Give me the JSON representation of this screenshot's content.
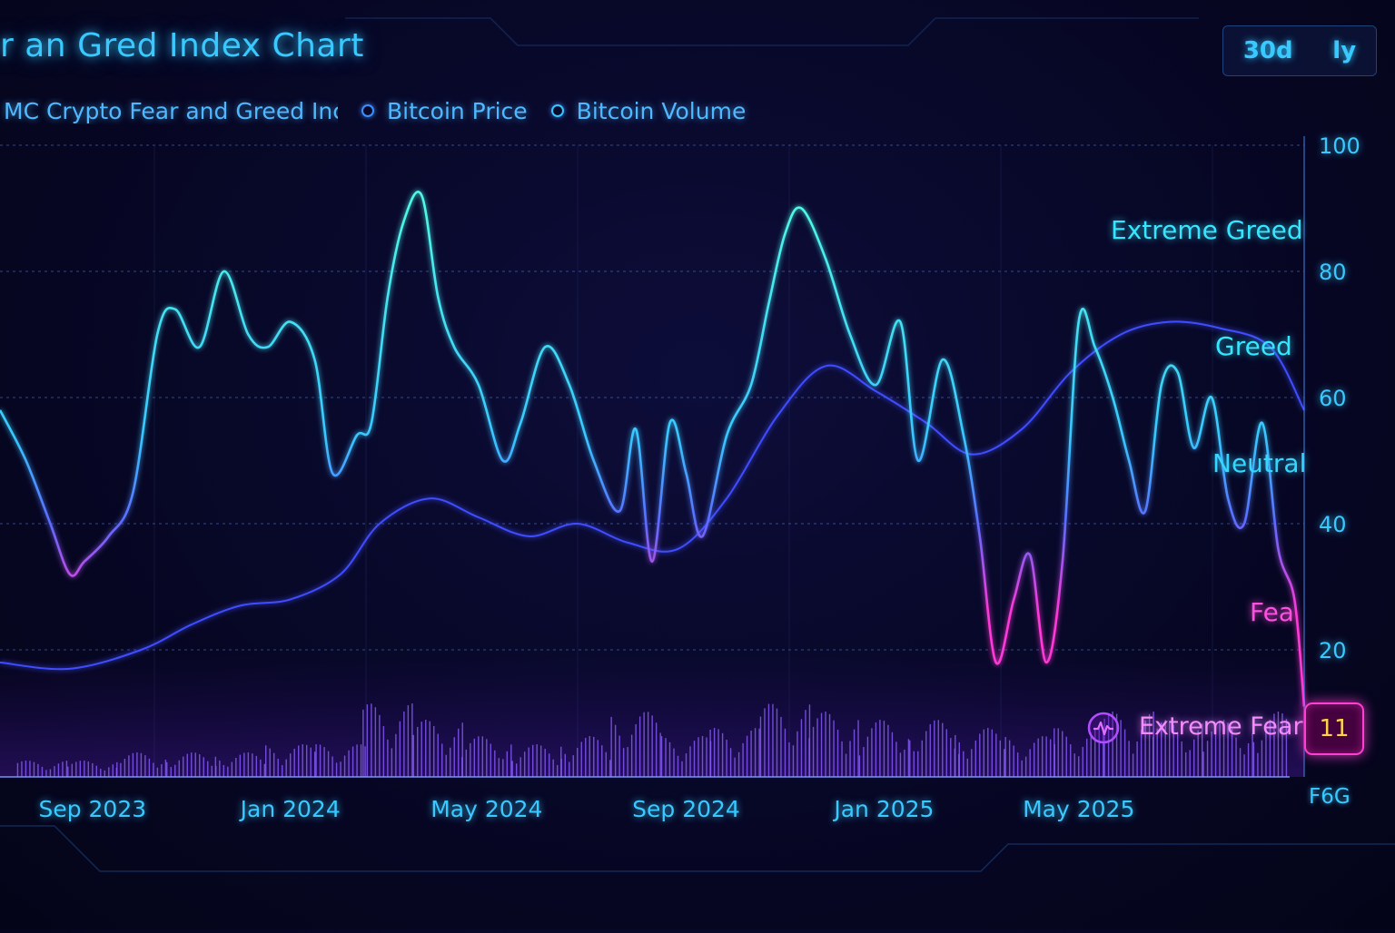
{
  "title": "r an Gred Index Chart",
  "range_buttons": [
    "30d",
    "ly"
  ],
  "legend": [
    {
      "label": "MC Crypto Fear and Greed Inc",
      "color": "#3fa8ff"
    },
    {
      "label": "Bitcoin Price",
      "color": "#3f7bff"
    },
    {
      "label": "Bitcoin Volume",
      "color": "#35c8ff"
    }
  ],
  "sentiment_labels": {
    "extreme_greed": "Extreme Greed",
    "greed": "Greed",
    "neutral": "Neutral",
    "fear": "Fea",
    "extreme_fear": "Extreme Fear"
  },
  "current_value": "11",
  "corner_label": "F6G",
  "colors": {
    "index_high": "#35f0e0",
    "index_low": "#ff38d8",
    "price": "#3f4dff",
    "volume": "#8a5cff",
    "accent": "#39c9ff"
  },
  "chart_data": {
    "type": "line",
    "title": "r an Gred Index Chart",
    "x_ticks": [
      "Sep 2023",
      "Jan 2024",
      "May 2024",
      "Sep 2024",
      "Jan 2025",
      "May 2025"
    ],
    "x_tick_dates": [
      "2023-09-15",
      "2024-01-15",
      "2024-05-15",
      "2024-09-15",
      "2025-01-15",
      "2025-05-15"
    ],
    "x_range": [
      "2023-07-20",
      "2025-10-01"
    ],
    "y_ticks": [
      20,
      40,
      60,
      80,
      100
    ],
    "ylim": [
      0,
      100
    ],
    "grid": true,
    "legend_position": "top-left",
    "series": [
      {
        "name": "MC Crypto Fear and Greed Inc",
        "x": [
          "2023-07-20",
          "2023-08-05",
          "2023-08-20",
          "2023-09-01",
          "2023-09-10",
          "2023-09-25",
          "2023-10-10",
          "2023-10-25",
          "2023-11-05",
          "2023-11-20",
          "2023-12-05",
          "2023-12-20",
          "2024-01-01",
          "2024-01-15",
          "2024-01-30",
          "2024-02-10",
          "2024-02-25",
          "2024-03-05",
          "2024-03-15",
          "2024-03-25",
          "2024-04-05",
          "2024-04-15",
          "2024-04-25",
          "2024-05-10",
          "2024-05-25",
          "2024-06-05",
          "2024-06-20",
          "2024-07-05",
          "2024-07-20",
          "2024-08-05",
          "2024-08-15",
          "2024-08-25",
          "2024-09-05",
          "2024-09-15",
          "2024-09-25",
          "2024-10-10",
          "2024-10-25",
          "2024-11-05",
          "2024-11-15",
          "2024-11-25",
          "2024-12-10",
          "2024-12-25",
          "2025-01-10",
          "2025-01-25",
          "2025-02-05",
          "2025-02-20",
          "2025-03-05",
          "2025-03-15",
          "2025-03-25",
          "2025-04-05",
          "2025-04-15",
          "2025-04-25",
          "2025-05-05",
          "2025-05-15",
          "2025-05-25",
          "2025-06-05",
          "2025-06-15",
          "2025-06-25",
          "2025-07-05",
          "2025-07-15",
          "2025-07-25",
          "2025-08-05",
          "2025-08-15",
          "2025-08-25",
          "2025-09-05",
          "2025-09-15",
          "2025-09-25",
          "2025-10-01"
        ],
        "y": [
          58,
          50,
          40,
          32,
          34,
          38,
          45,
          70,
          74,
          68,
          80,
          70,
          68,
          72,
          66,
          48,
          54,
          56,
          76,
          88,
          92,
          76,
          68,
          62,
          50,
          56,
          68,
          62,
          50,
          42,
          55,
          34,
          56,
          48,
          38,
          54,
          62,
          75,
          86,
          90,
          82,
          70,
          62,
          72,
          50,
          66,
          54,
          38,
          18,
          28,
          35,
          18,
          34,
          72,
          68,
          60,
          50,
          42,
          62,
          64,
          52,
          60,
          44,
          40,
          56,
          36,
          28,
          11
        ]
      },
      {
        "name": "Bitcoin Price",
        "x": [
          "2023-07-20",
          "2023-09-01",
          "2023-10-15",
          "2023-11-15",
          "2023-12-15",
          "2024-01-15",
          "2024-02-15",
          "2024-03-10",
          "2024-04-10",
          "2024-05-10",
          "2024-06-10",
          "2024-07-10",
          "2024-08-10",
          "2024-09-10",
          "2024-10-10",
          "2024-11-10",
          "2024-12-10",
          "2025-01-10",
          "2025-02-10",
          "2025-03-10",
          "2025-04-10",
          "2025-05-10",
          "2025-06-10",
          "2025-07-10",
          "2025-08-10",
          "2025-09-10",
          "2025-10-01"
        ],
        "y": [
          18,
          17,
          20,
          24,
          27,
          28,
          32,
          40,
          44,
          41,
          38,
          40,
          37,
          36,
          44,
          57,
          65,
          61,
          56,
          51,
          55,
          64,
          70,
          72,
          71,
          68,
          58
        ]
      },
      {
        "name": "Bitcoin Volume",
        "x": [
          "2023-08",
          "2023-09",
          "2023-10",
          "2023-11",
          "2023-12",
          "2024-01",
          "2024-02",
          "2024-03",
          "2024-04",
          "2024-05",
          "2024-06",
          "2024-07",
          "2024-08",
          "2024-09",
          "2024-10",
          "2024-11",
          "2024-12",
          "2025-01",
          "2025-02",
          "2025-03",
          "2025-04",
          "2025-05",
          "2025-06",
          "2025-07",
          "2025-08",
          "2025-09"
        ],
        "y": [
          2,
          2,
          3,
          3,
          3,
          4,
          4,
          9,
          7,
          5,
          4,
          5,
          8,
          5,
          6,
          9,
          8,
          7,
          7,
          6,
          5,
          6,
          8,
          7,
          7,
          8
        ]
      }
    ]
  }
}
